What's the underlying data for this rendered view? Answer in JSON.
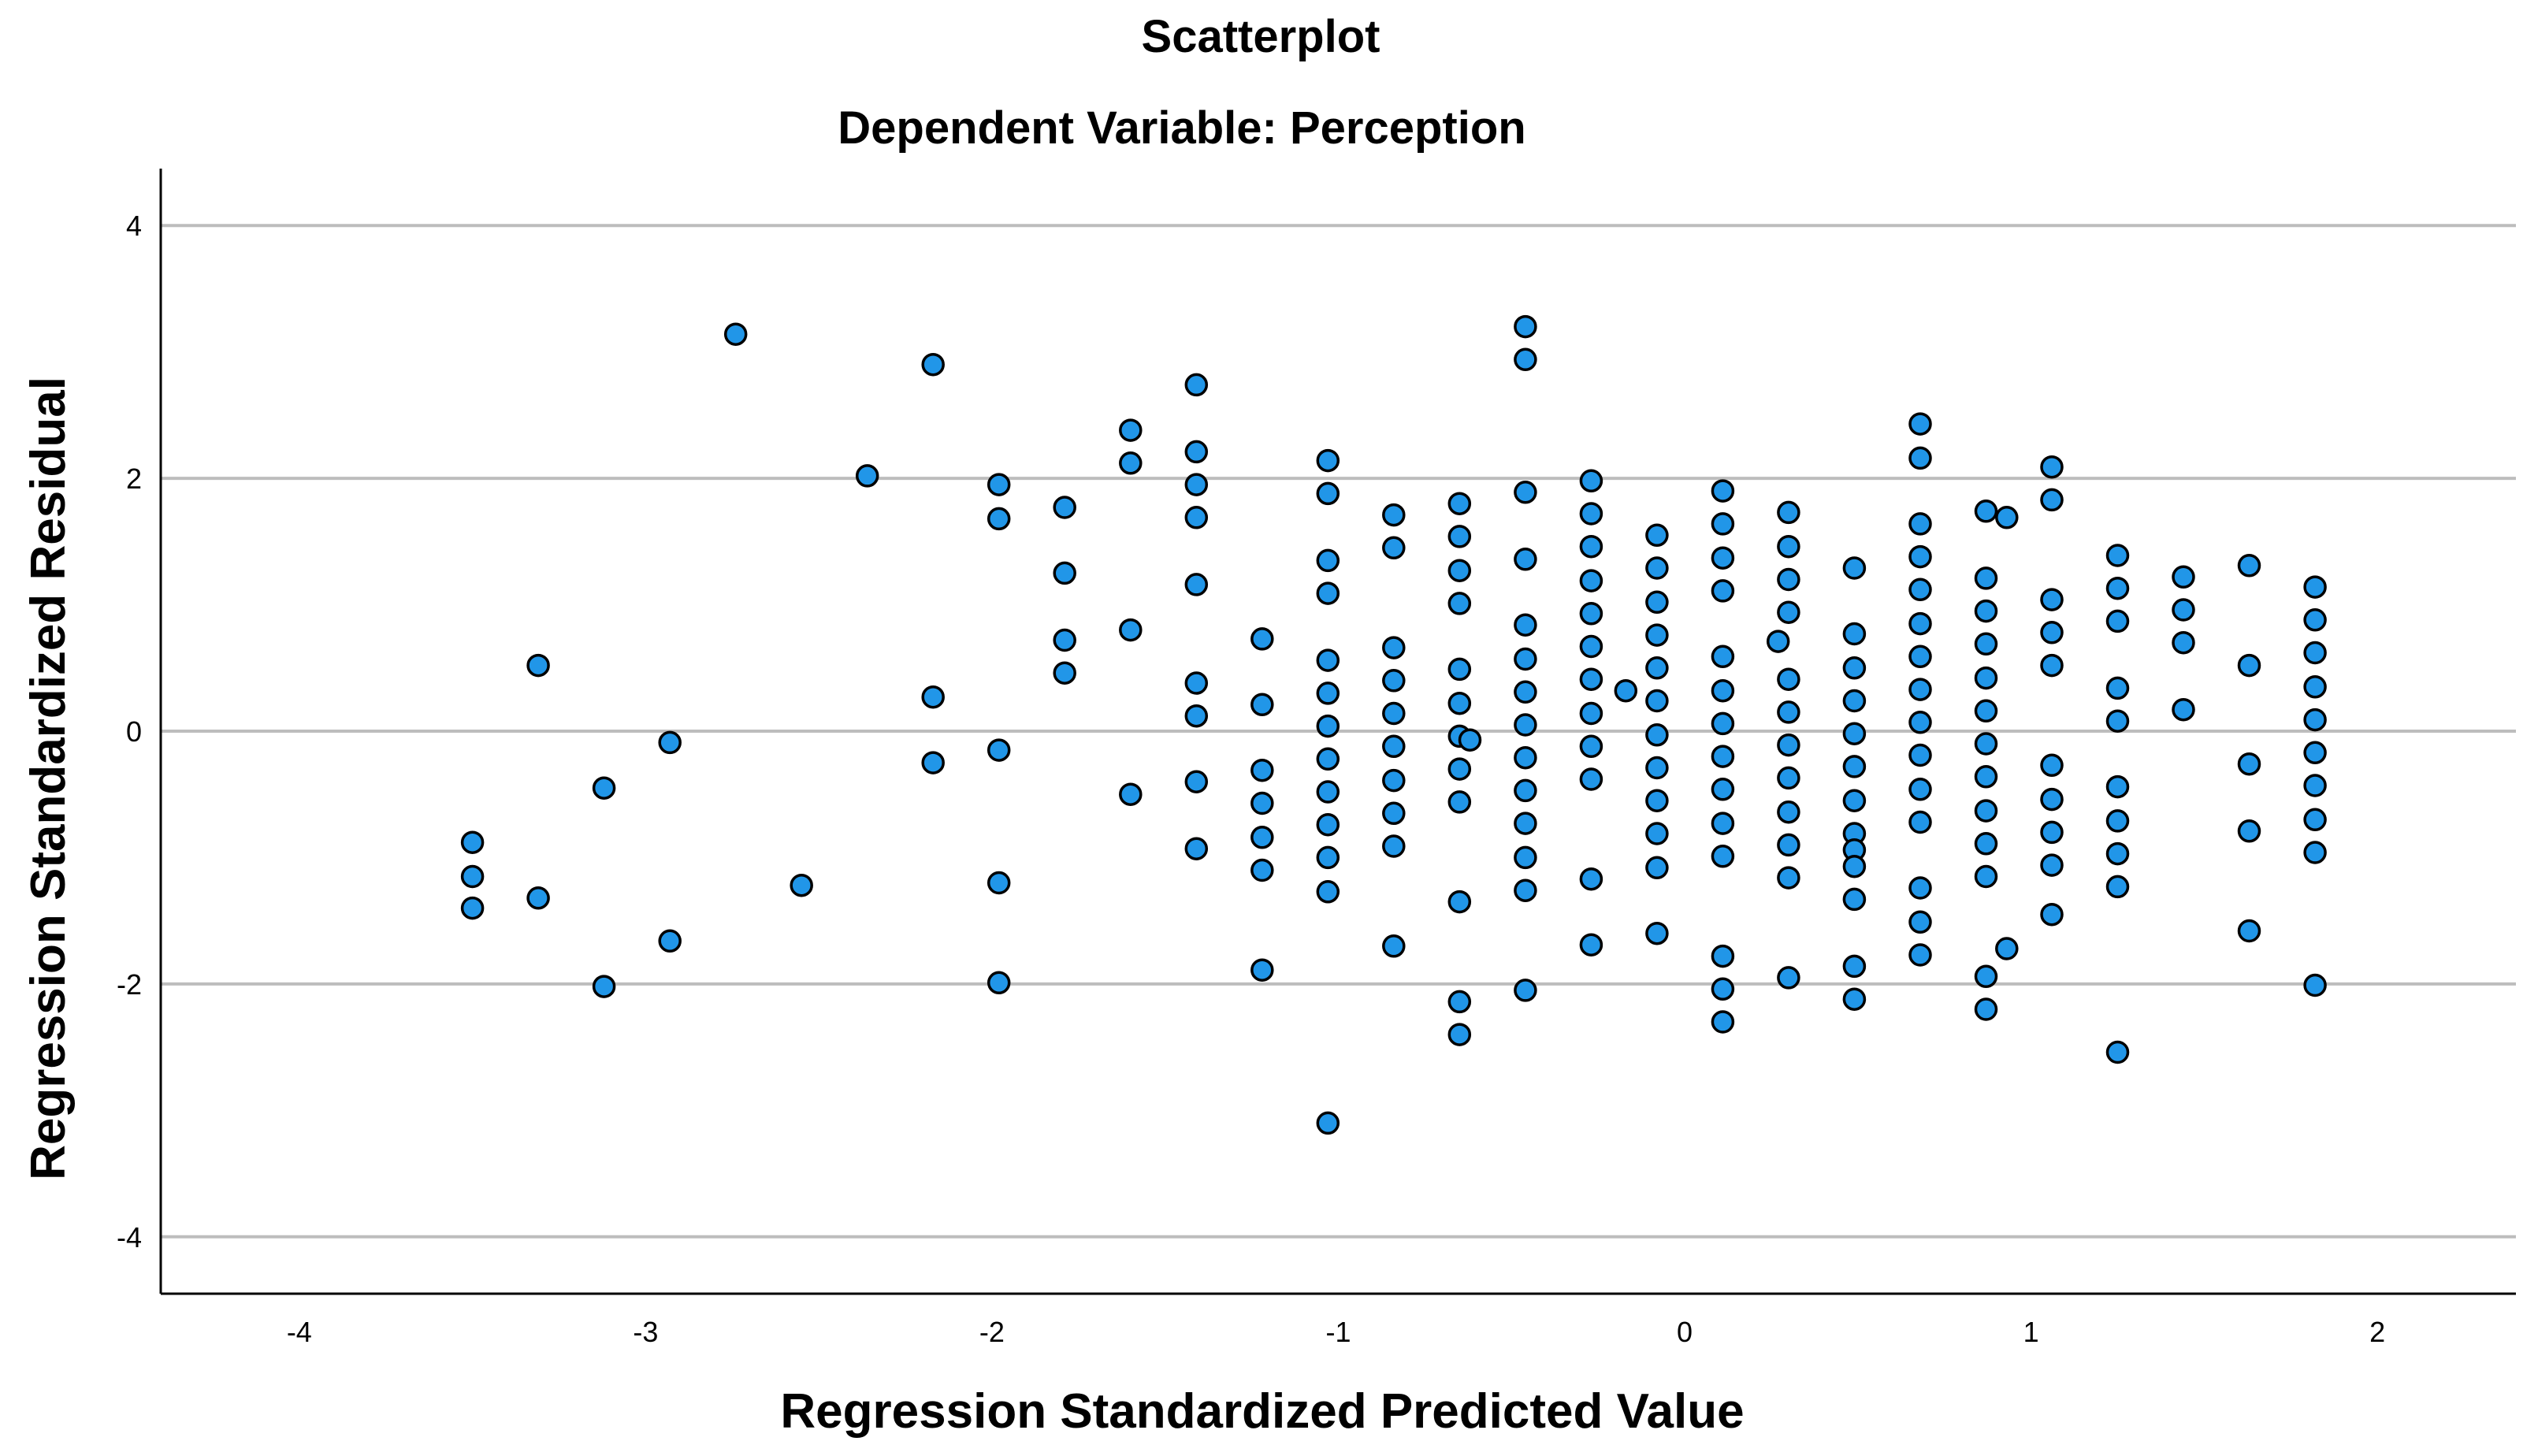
{
  "chart_data": {
    "type": "scatter",
    "title": "Scatterplot",
    "subtitle": "Dependent Variable: Perception",
    "xlabel": "Regression Standardized Predicted Value",
    "ylabel": "Regression Standardized Residual",
    "xlim": [
      -4.4,
      2.4
    ],
    "ylim": [
      -4.45,
      4.45
    ],
    "xticks": [
      -4,
      -3,
      -2,
      -1,
      0,
      1,
      2
    ],
    "xtick_labels": [
      "-4",
      "-3",
      "-2",
      "-1",
      "0",
      "1",
      "2"
    ],
    "yticks": [
      4,
      2,
      0,
      -2,
      -4
    ],
    "ytick_labels": [
      "4",
      "2",
      "0",
      "-2",
      "-4"
    ],
    "horizontal_gridlines": [
      4,
      2,
      0,
      -2,
      -4
    ],
    "marker_color": "#2196e8",
    "marker_edge_color": "#000000",
    "points": [
      [
        -3.5,
        -0.88
      ],
      [
        -3.5,
        -1.15
      ],
      [
        -3.5,
        -1.4
      ],
      [
        -3.31,
        0.52
      ],
      [
        -3.31,
        -1.32
      ],
      [
        -3.12,
        -0.45
      ],
      [
        -3.12,
        -2.02
      ],
      [
        -2.93,
        -0.09
      ],
      [
        -2.93,
        -1.66
      ],
      [
        -2.74,
        3.14
      ],
      [
        -2.55,
        -1.22
      ],
      [
        -2.36,
        2.02
      ],
      [
        -2.17,
        2.9
      ],
      [
        -2.17,
        0.27
      ],
      [
        -2.17,
        -0.25
      ],
      [
        -1.98,
        1.95
      ],
      [
        -1.98,
        1.68
      ],
      [
        -1.98,
        -0.15
      ],
      [
        -1.98,
        -1.2
      ],
      [
        -1.98,
        -1.99
      ],
      [
        -1.79,
        1.77
      ],
      [
        -1.79,
        1.25
      ],
      [
        -1.79,
        0.72
      ],
      [
        -1.79,
        0.46
      ],
      [
        -1.6,
        2.38
      ],
      [
        -1.6,
        2.12
      ],
      [
        -1.6,
        0.8
      ],
      [
        -1.6,
        -0.5
      ],
      [
        -1.41,
        2.74
      ],
      [
        -1.41,
        2.21
      ],
      [
        -1.41,
        1.95
      ],
      [
        -1.41,
        1.69
      ],
      [
        -1.41,
        1.16
      ],
      [
        -1.41,
        0.38
      ],
      [
        -1.41,
        0.12
      ],
      [
        -1.41,
        -0.4
      ],
      [
        -1.41,
        -0.93
      ],
      [
        -1.22,
        0.73
      ],
      [
        -1.22,
        0.21
      ],
      [
        -1.22,
        -0.31
      ],
      [
        -1.22,
        -0.57
      ],
      [
        -1.22,
        -0.84
      ],
      [
        -1.22,
        -1.1
      ],
      [
        -1.22,
        -1.89
      ],
      [
        -1.03,
        2.14
      ],
      [
        -1.03,
        1.88
      ],
      [
        -1.03,
        1.35
      ],
      [
        -1.03,
        1.09
      ],
      [
        -1.03,
        0.56
      ],
      [
        -1.03,
        0.3
      ],
      [
        -1.03,
        0.04
      ],
      [
        -1.03,
        -0.22
      ],
      [
        -1.03,
        -0.48
      ],
      [
        -1.03,
        -0.74
      ],
      [
        -1.03,
        -1.0
      ],
      [
        -1.03,
        -1.27
      ],
      [
        -1.03,
        -3.1
      ],
      [
        -0.84,
        1.71
      ],
      [
        -0.84,
        1.45
      ],
      [
        -0.84,
        0.66
      ],
      [
        -0.84,
        0.4
      ],
      [
        -0.84,
        0.14
      ],
      [
        -0.84,
        -0.12
      ],
      [
        -0.84,
        -0.39
      ],
      [
        -0.84,
        -0.65
      ],
      [
        -0.84,
        -0.91
      ],
      [
        -0.84,
        -1.7
      ],
      [
        -0.65,
        1.8
      ],
      [
        -0.65,
        1.54
      ],
      [
        -0.65,
        1.27
      ],
      [
        -0.65,
        1.01
      ],
      [
        -0.65,
        0.49
      ],
      [
        -0.65,
        0.22
      ],
      [
        -0.65,
        -0.04
      ],
      [
        -0.65,
        -0.3
      ],
      [
        -0.65,
        -0.56
      ],
      [
        -0.65,
        -1.35
      ],
      [
        -0.65,
        -2.14
      ],
      [
        -0.65,
        -2.4
      ],
      [
        -0.62,
        -0.07
      ],
      [
        -0.46,
        3.2
      ],
      [
        -0.46,
        2.94
      ],
      [
        -0.46,
        1.89
      ],
      [
        -0.46,
        1.36
      ],
      [
        -0.46,
        0.84
      ],
      [
        -0.46,
        0.57
      ],
      [
        -0.46,
        0.31
      ],
      [
        -0.46,
        0.05
      ],
      [
        -0.46,
        -0.21
      ],
      [
        -0.46,
        -0.47
      ],
      [
        -0.46,
        -0.73
      ],
      [
        -0.46,
        -1.0
      ],
      [
        -0.46,
        -1.26
      ],
      [
        -0.46,
        -2.05
      ],
      [
        -0.27,
        1.98
      ],
      [
        -0.27,
        1.72
      ],
      [
        -0.27,
        1.46
      ],
      [
        -0.27,
        1.19
      ],
      [
        -0.27,
        0.93
      ],
      [
        -0.27,
        0.67
      ],
      [
        -0.27,
        0.41
      ],
      [
        -0.27,
        0.14
      ],
      [
        -0.27,
        -0.12
      ],
      [
        -0.27,
        -0.38
      ],
      [
        -0.27,
        -1.17
      ],
      [
        -0.27,
        -1.69
      ],
      [
        -0.17,
        0.32
      ],
      [
        -0.08,
        1.55
      ],
      [
        -0.08,
        1.29
      ],
      [
        -0.08,
        1.02
      ],
      [
        -0.08,
        0.76
      ],
      [
        -0.08,
        0.5
      ],
      [
        -0.08,
        0.24
      ],
      [
        -0.08,
        -0.03
      ],
      [
        -0.08,
        -0.29
      ],
      [
        -0.08,
        -0.55
      ],
      [
        -0.08,
        -0.81
      ],
      [
        -0.08,
        -1.08
      ],
      [
        -0.08,
        -1.6
      ],
      [
        0.11,
        1.9
      ],
      [
        0.11,
        1.64
      ],
      [
        0.11,
        1.37
      ],
      [
        0.11,
        1.11
      ],
      [
        0.11,
        0.59
      ],
      [
        0.11,
        0.32
      ],
      [
        0.11,
        0.06
      ],
      [
        0.11,
        -0.2
      ],
      [
        0.11,
        -0.46
      ],
      [
        0.11,
        -0.73
      ],
      [
        0.11,
        -0.99
      ],
      [
        0.11,
        -1.78
      ],
      [
        0.11,
        -2.04
      ],
      [
        0.11,
        -2.3
      ],
      [
        0.27,
        0.71
      ],
      [
        0.3,
        1.73
      ],
      [
        0.3,
        1.46
      ],
      [
        0.3,
        1.2
      ],
      [
        0.3,
        0.94
      ],
      [
        0.3,
        0.41
      ],
      [
        0.3,
        0.15
      ],
      [
        0.3,
        -0.11
      ],
      [
        0.3,
        -0.37
      ],
      [
        0.3,
        -0.64
      ],
      [
        0.3,
        -0.9
      ],
      [
        0.3,
        -1.16
      ],
      [
        0.3,
        -1.95
      ],
      [
        0.49,
        1.29
      ],
      [
        0.49,
        0.77
      ],
      [
        0.49,
        0.5
      ],
      [
        0.49,
        0.24
      ],
      [
        0.49,
        -0.02
      ],
      [
        0.49,
        -0.28
      ],
      [
        0.49,
        -0.55
      ],
      [
        0.49,
        -0.81
      ],
      [
        0.49,
        -0.94
      ],
      [
        0.49,
        -1.07
      ],
      [
        0.49,
        -1.33
      ],
      [
        0.49,
        -1.86
      ],
      [
        0.49,
        -2.12
      ],
      [
        0.68,
        2.43
      ],
      [
        0.68,
        2.16
      ],
      [
        0.68,
        1.64
      ],
      [
        0.68,
        1.38
      ],
      [
        0.68,
        1.12
      ],
      [
        0.68,
        0.85
      ],
      [
        0.68,
        0.59
      ],
      [
        0.68,
        0.33
      ],
      [
        0.68,
        0.07
      ],
      [
        0.68,
        -0.19
      ],
      [
        0.68,
        -0.46
      ],
      [
        0.68,
        -0.72
      ],
      [
        0.68,
        -1.24
      ],
      [
        0.68,
        -1.51
      ],
      [
        0.68,
        -1.77
      ],
      [
        0.87,
        1.74
      ],
      [
        0.87,
        1.21
      ],
      [
        0.87,
        0.95
      ],
      [
        0.87,
        0.69
      ],
      [
        0.87,
        0.42
      ],
      [
        0.87,
        0.16
      ],
      [
        0.87,
        -0.1
      ],
      [
        0.87,
        -0.36
      ],
      [
        0.87,
        -0.63
      ],
      [
        0.87,
        -0.89
      ],
      [
        0.87,
        -1.15
      ],
      [
        0.87,
        -1.94
      ],
      [
        0.87,
        -2.2
      ],
      [
        0.93,
        1.69
      ],
      [
        0.93,
        -1.72
      ],
      [
        1.06,
        2.09
      ],
      [
        1.06,
        1.83
      ],
      [
        1.06,
        1.04
      ],
      [
        1.06,
        0.78
      ],
      [
        1.06,
        0.52
      ],
      [
        1.06,
        -0.27
      ],
      [
        1.06,
        -0.54
      ],
      [
        1.06,
        -0.8
      ],
      [
        1.06,
        -1.06
      ],
      [
        1.06,
        -1.45
      ],
      [
        1.25,
        1.39
      ],
      [
        1.25,
        1.13
      ],
      [
        1.25,
        0.87
      ],
      [
        1.25,
        0.34
      ],
      [
        1.25,
        0.08
      ],
      [
        1.25,
        -0.44
      ],
      [
        1.25,
        -0.71
      ],
      [
        1.25,
        -0.97
      ],
      [
        1.25,
        -1.23
      ],
      [
        1.25,
        -2.54
      ],
      [
        1.44,
        1.22
      ],
      [
        1.44,
        0.96
      ],
      [
        1.44,
        0.7
      ],
      [
        1.44,
        0.17
      ],
      [
        1.63,
        1.31
      ],
      [
        1.63,
        0.52
      ],
      [
        1.63,
        -0.26
      ],
      [
        1.63,
        -0.79
      ],
      [
        1.63,
        -1.58
      ],
      [
        1.82,
        1.14
      ],
      [
        1.82,
        0.88
      ],
      [
        1.82,
        0.62
      ],
      [
        1.82,
        0.35
      ],
      [
        1.82,
        0.09
      ],
      [
        1.82,
        -0.17
      ],
      [
        1.82,
        -0.43
      ],
      [
        1.82,
        -0.7
      ],
      [
        1.82,
        -0.96
      ],
      [
        1.82,
        -2.01
      ]
    ]
  }
}
